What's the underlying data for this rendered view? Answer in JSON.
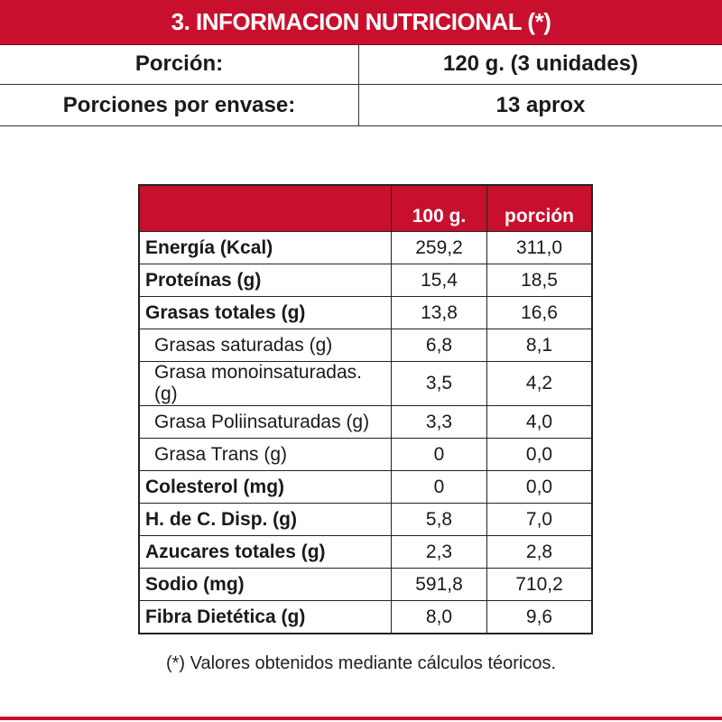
{
  "header": {
    "title": "3. INFORMACION NUTRICIONAL (*)"
  },
  "serving": {
    "portion_label": "Porción:",
    "portion_value": "120 g. (3 unidades)",
    "per_container_label": "Porciones por envase:",
    "per_container_value": "13 aprox"
  },
  "nutrition": {
    "columns": [
      "",
      "100 g.",
      "porción"
    ],
    "rows": [
      {
        "name": "Energía (Kcal)",
        "per100": "259,2",
        "portion": "311,0",
        "sub": false
      },
      {
        "name": "Proteínas (g)",
        "per100": "15,4",
        "portion": "18,5",
        "sub": false
      },
      {
        "name": "Grasas totales (g)",
        "per100": "13,8",
        "portion": "16,6",
        "sub": false
      },
      {
        "name": "Grasas saturadas (g)",
        "per100": "6,8",
        "portion": "8,1",
        "sub": true
      },
      {
        "name": "Grasa monoinsaturadas. (g)",
        "per100": "3,5",
        "portion": "4,2",
        "sub": true
      },
      {
        "name": "Grasa Poliinsaturadas (g)",
        "per100": "3,3",
        "portion": "4,0",
        "sub": true
      },
      {
        "name": "Grasa Trans (g)",
        "per100": "0",
        "portion": "0,0",
        "sub": true
      },
      {
        "name": "Colesterol (mg)",
        "per100": "0",
        "portion": "0,0",
        "sub": false
      },
      {
        "name": "H. de C. Disp. (g)",
        "per100": "5,8",
        "portion": "7,0",
        "sub": false
      },
      {
        "name": "Azucares totales (g)",
        "per100": "2,3",
        "portion": "2,8",
        "sub": false
      },
      {
        "name": "Sodio (mg)",
        "per100": "591,8",
        "portion": "710,2",
        "sub": false
      },
      {
        "name": "Fibra Dietética (g)",
        "per100": "8,0",
        "portion": "9,6",
        "sub": false
      }
    ]
  },
  "footnote": "(*) Valores obtenidos mediante cálculos téoricos.",
  "colors": {
    "accent": "#c8102e"
  }
}
